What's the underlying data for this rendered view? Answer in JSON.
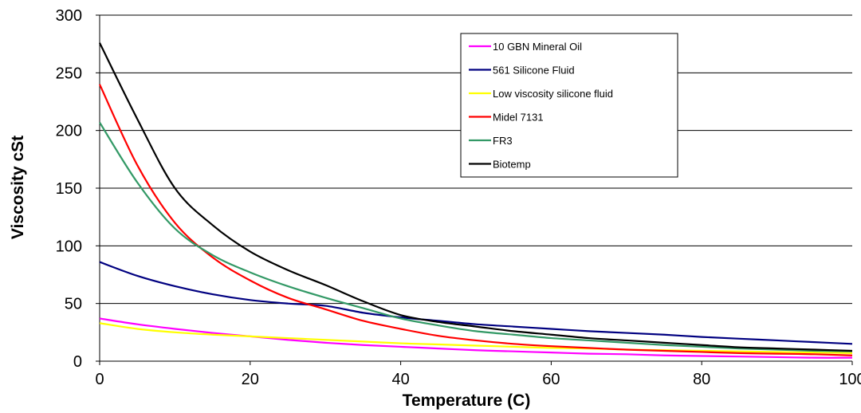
{
  "chart_data": {
    "type": "line",
    "xlabel": "Temperature (C)",
    "ylabel": "Viscosity cSt",
    "xlim": [
      0,
      100
    ],
    "ylim": [
      0,
      300
    ],
    "xticks": [
      0,
      20,
      40,
      60,
      80,
      100
    ],
    "yticks": [
      0,
      50,
      100,
      150,
      200,
      250,
      300
    ],
    "grid": "horizontal",
    "legend_position": "top-right",
    "x": [
      0,
      5,
      10,
      15,
      20,
      25,
      30,
      35,
      40,
      45,
      50,
      55,
      60,
      65,
      70,
      75,
      80,
      85,
      90,
      95,
      100
    ],
    "series": [
      {
        "name": "10 GBN Mineral Oil",
        "color": "#ff00ff",
        "values": [
          37,
          32,
          28,
          24.5,
          21.5,
          18.5,
          16,
          14,
          12.5,
          11,
          9.5,
          8.5,
          7.5,
          6.5,
          6,
          5,
          4.5,
          4,
          3.5,
          3,
          3
        ]
      },
      {
        "name": "561 Silicone Fluid",
        "color": "#000080",
        "values": [
          86,
          74,
          65,
          58,
          53,
          50,
          48,
          42,
          38,
          35,
          32,
          30,
          28,
          26,
          24.5,
          23,
          21,
          19.5,
          18,
          16.5,
          15
        ]
      },
      {
        "name": "Low viscosity silicone fluid",
        "color": "#ffff00",
        "values": [
          33,
          28,
          25,
          23,
          21.5,
          20,
          18.5,
          17,
          15.5,
          14.5,
          13.5,
          12.5,
          11.5,
          11,
          10,
          9.5,
          9,
          8.5,
          8,
          7.5,
          7
        ]
      },
      {
        "name": "Midel 7131",
        "color": "#ff0000",
        "values": [
          240,
          170,
          120,
          90,
          70,
          55,
          45,
          35,
          28,
          22,
          18,
          15,
          13,
          11.5,
          10,
          9,
          8,
          7,
          6.5,
          6,
          5
        ]
      },
      {
        "name": "FR3",
        "color": "#339966",
        "values": [
          207,
          155,
          115,
          92,
          77,
          65,
          55,
          46,
          37,
          31,
          26,
          23,
          20,
          18,
          16,
          14,
          12.5,
          11,
          10,
          9,
          8.5
        ]
      },
      {
        "name": "Biotemp",
        "color": "#000000",
        "values": [
          276,
          210,
          150,
          118,
          95,
          79,
          66,
          52,
          40,
          34,
          30,
          26,
          23,
          20,
          18,
          16,
          14,
          12,
          11,
          10,
          9
        ]
      }
    ]
  }
}
